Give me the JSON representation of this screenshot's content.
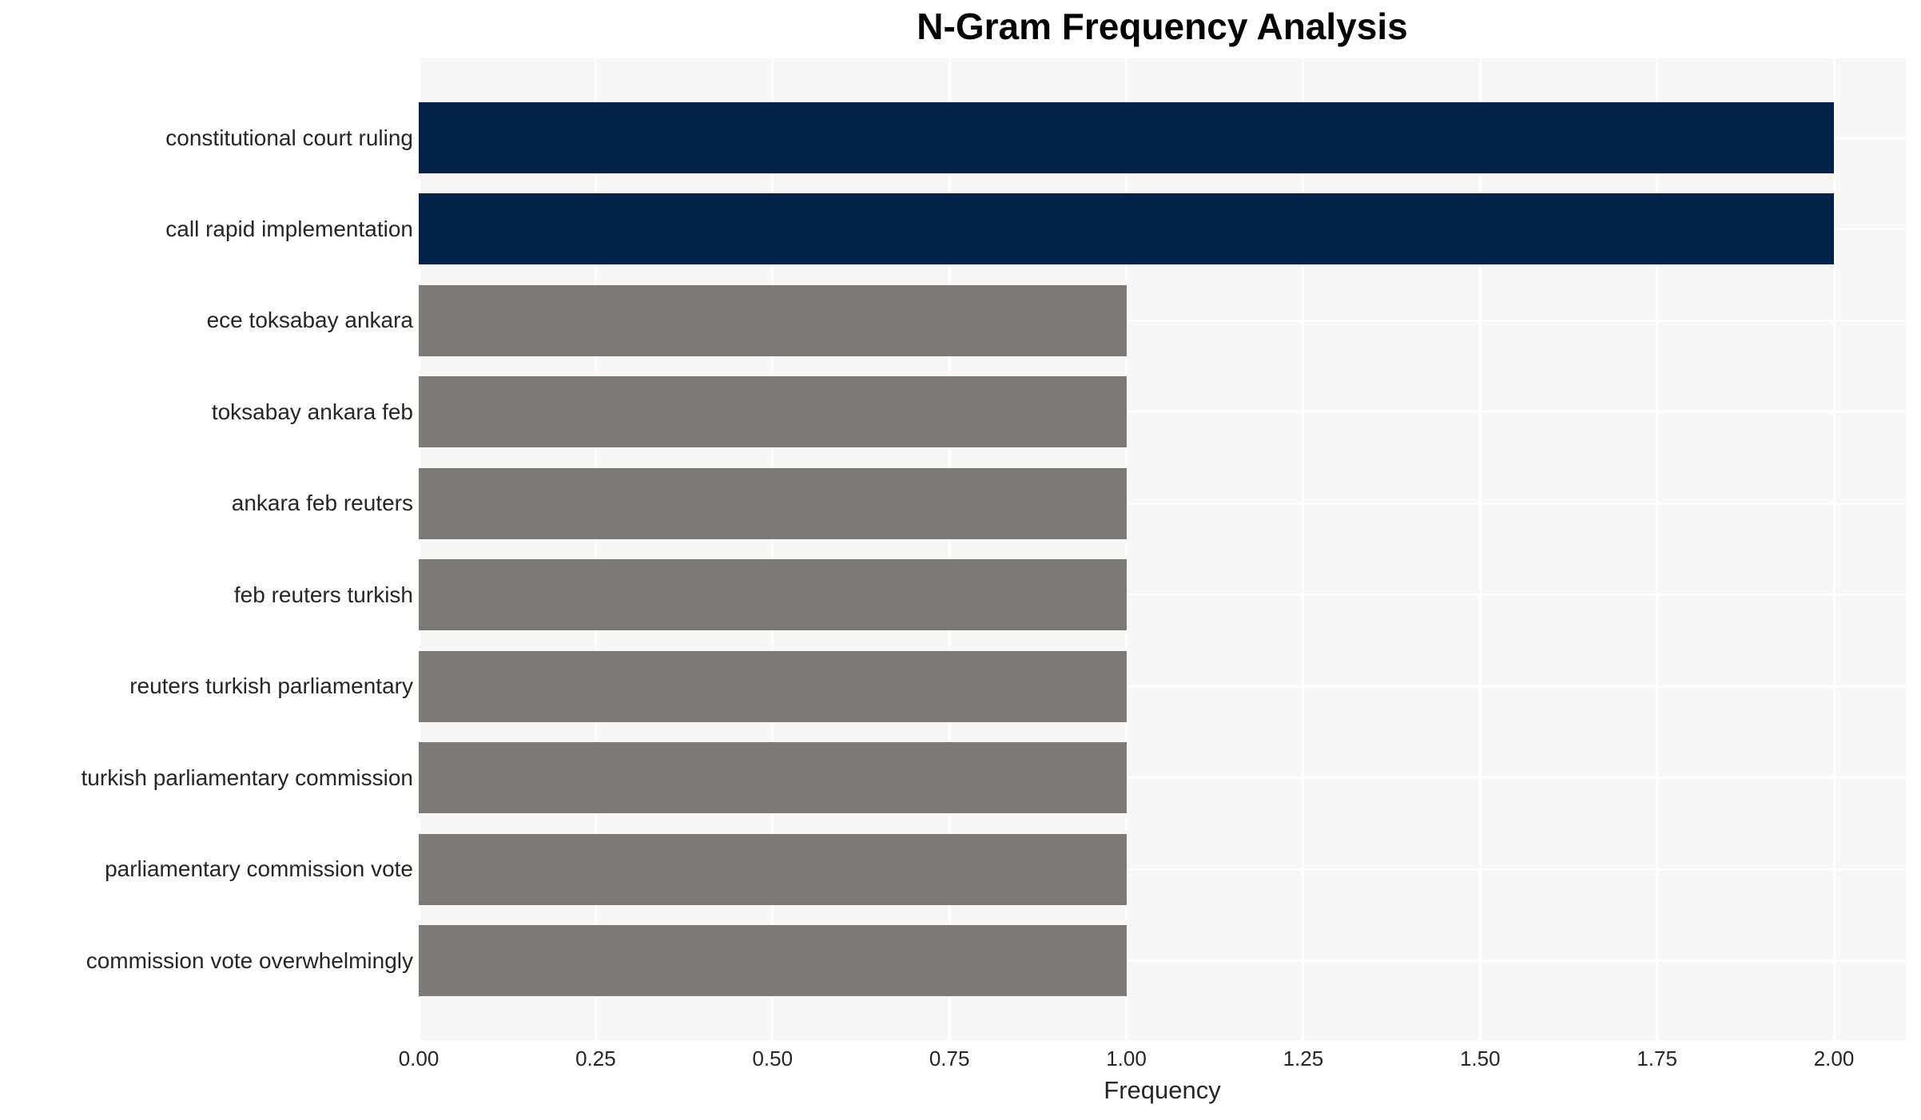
{
  "chart_data": {
    "type": "bar",
    "orientation": "horizontal",
    "title": "N-Gram Frequency Analysis",
    "xlabel": "Frequency",
    "ylabel": "",
    "categories": [
      "constitutional court ruling",
      "call rapid implementation",
      "ece toksabay ankara",
      "toksabay ankara feb",
      "ankara feb reuters",
      "feb reuters turkish",
      "reuters turkish parliamentary",
      "turkish parliamentary commission",
      "parliamentary commission vote",
      "commission vote overwhelmingly"
    ],
    "values": [
      2,
      2,
      1,
      1,
      1,
      1,
      1,
      1,
      1,
      1
    ],
    "xlim": [
      0,
      2.1
    ],
    "xticks": [
      0,
      0.25,
      0.5,
      0.75,
      1.0,
      1.25,
      1.5,
      1.75,
      2.0
    ],
    "xtick_labels": [
      "0.00",
      "0.25",
      "0.50",
      "0.75",
      "1.00",
      "1.25",
      "1.50",
      "1.75",
      "2.00"
    ],
    "grid": true,
    "legend": false,
    "colors": {
      "highlight_bar": "#02224a",
      "default_bar": "#7b7a76",
      "plot_background": "#f7f7f7",
      "page_background": "#ffffff",
      "grid_line": "#ffffff",
      "tick_text": "#262626",
      "title_text": "#000000"
    },
    "bar_colors": [
      "#02224a",
      "#02224a",
      "#7b7a76",
      "#7b7a76",
      "#7b7a76",
      "#7b7a76",
      "#7b7a76",
      "#7b7a76",
      "#7b7a76",
      "#7b7a76"
    ]
  }
}
